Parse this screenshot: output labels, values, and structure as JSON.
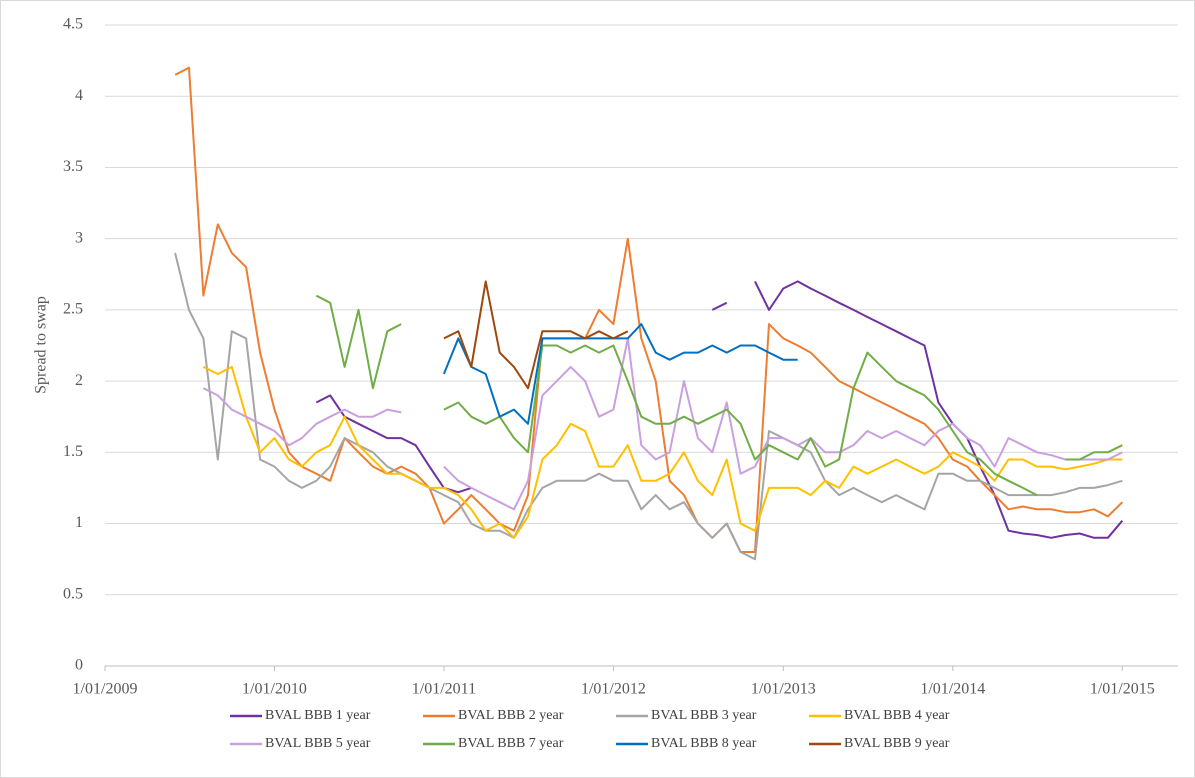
{
  "chart_data": {
    "type": "line",
    "y_label": "Spread to swap",
    "x": [
      "2009-06-01",
      "2009-07-01",
      "2009-08-01",
      "2009-09-01",
      "2009-10-01",
      "2009-11-01",
      "2009-12-01",
      "2010-01-01",
      "2010-02-01",
      "2010-03-01",
      "2010-04-01",
      "2010-05-01",
      "2010-06-01",
      "2010-07-01",
      "2010-08-01",
      "2010-09-01",
      "2010-10-01",
      "2010-11-01",
      "2010-12-01",
      "2011-01-01",
      "2011-02-01",
      "2011-03-01",
      "2011-04-01",
      "2011-05-01",
      "2011-06-01",
      "2011-07-01",
      "2011-08-01",
      "2011-09-01",
      "2011-10-01",
      "2011-11-01",
      "2011-12-01",
      "2012-01-01",
      "2012-02-01",
      "2012-03-01",
      "2012-04-01",
      "2012-05-01",
      "2012-06-01",
      "2012-07-01",
      "2012-08-01",
      "2012-09-01",
      "2012-10-01",
      "2012-11-01",
      "2012-12-01",
      "2013-01-01",
      "2013-02-01",
      "2013-03-01",
      "2013-04-01",
      "2013-05-01",
      "2013-06-01",
      "2013-07-01",
      "2013-08-01",
      "2013-09-01",
      "2013-10-01",
      "2013-11-01",
      "2013-12-01",
      "2014-01-01",
      "2014-02-01",
      "2014-03-01",
      "2014-04-01",
      "2014-05-01",
      "2014-06-01",
      "2014-07-01",
      "2014-08-01",
      "2014-09-01",
      "2014-10-01",
      "2014-11-01",
      "2014-12-01",
      "2015-01-01"
    ],
    "series": [
      {
        "name": "BVAL BBB 1 year",
        "color": "#7030a0",
        "values": [
          null,
          null,
          null,
          null,
          null,
          null,
          null,
          null,
          null,
          null,
          1.85,
          1.9,
          1.75,
          1.7,
          1.65,
          1.6,
          1.6,
          1.55,
          1.4,
          1.25,
          1.22,
          1.25,
          null,
          null,
          null,
          null,
          null,
          null,
          null,
          null,
          null,
          null,
          null,
          null,
          null,
          null,
          null,
          null,
          2.5,
          2.55,
          null,
          2.7,
          2.5,
          2.65,
          2.7,
          2.65,
          2.6,
          2.55,
          2.5,
          2.45,
          2.4,
          2.35,
          2.3,
          2.25,
          1.85,
          1.7,
          1.6,
          1.4,
          1.2,
          0.95,
          0.93,
          0.92,
          0.9,
          0.92,
          0.93,
          0.9,
          0.9,
          1.02
        ]
      },
      {
        "name": "BVAL BBB 2 year",
        "color": "#ed7d31",
        "values": [
          4.15,
          4.2,
          2.6,
          3.1,
          2.9,
          2.8,
          2.2,
          1.8,
          1.5,
          1.4,
          1.35,
          1.3,
          1.6,
          1.5,
          1.4,
          1.35,
          1.4,
          1.35,
          1.25,
          1.0,
          1.1,
          1.2,
          1.1,
          1.0,
          0.95,
          1.2,
          2.3,
          2.3,
          2.3,
          2.3,
          2.5,
          2.4,
          3.0,
          2.3,
          2.0,
          1.3,
          1.2,
          1.0,
          0.9,
          1.0,
          0.8,
          0.8,
          2.4,
          2.3,
          2.25,
          2.2,
          2.1,
          2.0,
          1.95,
          1.9,
          1.85,
          1.8,
          1.75,
          1.7,
          1.6,
          1.45,
          1.4,
          1.3,
          1.2,
          1.1,
          1.12,
          1.1,
          1.1,
          1.08,
          1.08,
          1.1,
          1.05,
          1.15
        ]
      },
      {
        "name": "BVAL BBB 3 year",
        "color": "#a5a5a5",
        "values": [
          2.9,
          2.5,
          2.3,
          1.45,
          2.35,
          2.3,
          1.45,
          1.4,
          1.3,
          1.25,
          1.3,
          1.4,
          1.6,
          1.55,
          1.5,
          1.4,
          1.35,
          1.3,
          1.25,
          1.2,
          1.15,
          1.0,
          0.95,
          0.95,
          0.9,
          1.1,
          1.25,
          1.3,
          1.3,
          1.3,
          1.35,
          1.3,
          1.3,
          1.1,
          1.2,
          1.1,
          1.15,
          1.0,
          0.9,
          1.0,
          0.8,
          0.75,
          1.65,
          1.6,
          1.55,
          1.5,
          1.3,
          1.2,
          1.25,
          1.2,
          1.15,
          1.2,
          1.15,
          1.1,
          1.35,
          1.35,
          1.3,
          1.3,
          1.25,
          1.2,
          1.2,
          1.2,
          1.2,
          1.22,
          1.25,
          1.25,
          1.27,
          1.3
        ]
      },
      {
        "name": "BVAL BBB 4 year",
        "color": "#ffc000",
        "values": [
          null,
          null,
          2.1,
          2.05,
          2.1,
          1.75,
          1.5,
          1.6,
          1.45,
          1.4,
          1.5,
          1.55,
          1.75,
          1.55,
          1.45,
          1.35,
          1.35,
          1.3,
          1.25,
          1.25,
          1.2,
          1.1,
          0.95,
          1.0,
          0.9,
          1.05,
          1.45,
          1.55,
          1.7,
          1.65,
          1.4,
          1.4,
          1.55,
          1.3,
          1.3,
          1.35,
          1.5,
          1.3,
          1.2,
          1.45,
          1.0,
          0.95,
          1.25,
          1.25,
          1.25,
          1.2,
          1.3,
          1.25,
          1.4,
          1.35,
          1.4,
          1.45,
          1.4,
          1.35,
          1.4,
          1.5,
          1.45,
          1.4,
          1.3,
          1.45,
          1.45,
          1.4,
          1.4,
          1.38,
          1.4,
          1.42,
          1.45,
          1.45
        ]
      },
      {
        "name": "BVAL BBB 5 year",
        "color": "#c99fe0",
        "values": [
          null,
          null,
          1.95,
          1.9,
          1.8,
          1.75,
          1.7,
          1.65,
          1.55,
          1.6,
          1.7,
          1.75,
          1.8,
          1.75,
          1.75,
          1.8,
          1.78,
          null,
          null,
          1.4,
          1.3,
          1.25,
          1.2,
          1.15,
          1.1,
          1.3,
          1.9,
          2.0,
          2.1,
          2.0,
          1.75,
          1.8,
          2.3,
          1.55,
          1.45,
          1.5,
          2.0,
          1.6,
          1.5,
          1.85,
          1.35,
          1.4,
          1.6,
          1.6,
          1.55,
          1.6,
          1.5,
          1.5,
          1.55,
          1.65,
          1.6,
          1.65,
          1.6,
          1.55,
          1.65,
          1.7,
          1.6,
          1.55,
          1.4,
          1.6,
          1.55,
          1.5,
          1.48,
          1.45,
          1.45,
          1.45,
          1.45,
          1.5
        ]
      },
      {
        "name": "BVAL BBB 7 year",
        "color": "#70ad47",
        "values": [
          null,
          null,
          null,
          null,
          null,
          null,
          null,
          null,
          null,
          null,
          2.6,
          2.55,
          2.1,
          2.5,
          1.95,
          2.35,
          2.4,
          null,
          null,
          1.8,
          1.85,
          1.75,
          1.7,
          1.75,
          1.6,
          1.5,
          2.25,
          2.25,
          2.2,
          2.25,
          2.2,
          2.25,
          2.0,
          1.75,
          1.7,
          1.7,
          1.75,
          1.7,
          1.75,
          1.8,
          1.7,
          1.45,
          1.55,
          1.5,
          1.45,
          1.6,
          1.4,
          1.45,
          1.95,
          2.2,
          2.1,
          2.0,
          1.95,
          1.9,
          1.8,
          1.65,
          1.5,
          1.45,
          1.35,
          1.3,
          1.25,
          1.2,
          null,
          1.45,
          1.45,
          1.5,
          1.5,
          1.55
        ]
      },
      {
        "name": "BVAL BBB 8 year",
        "color": "#0070c0",
        "values": [
          null,
          null,
          null,
          null,
          null,
          null,
          null,
          null,
          null,
          null,
          null,
          null,
          null,
          null,
          null,
          null,
          null,
          null,
          null,
          2.05,
          2.3,
          2.1,
          2.05,
          1.75,
          1.8,
          1.7,
          2.3,
          2.3,
          2.3,
          2.3,
          2.3,
          2.3,
          2.3,
          2.4,
          2.2,
          2.15,
          2.2,
          2.2,
          2.25,
          2.2,
          2.25,
          2.25,
          2.2,
          2.15,
          2.15,
          null,
          null,
          null,
          null,
          null,
          null,
          null,
          null,
          null,
          null,
          null,
          null,
          null,
          null,
          null,
          null,
          null,
          null,
          null,
          null,
          null,
          null,
          null
        ]
      },
      {
        "name": "BVAL BBB 9 year",
        "color": "#9e480e",
        "values": [
          null,
          null,
          null,
          null,
          null,
          null,
          null,
          null,
          null,
          null,
          null,
          null,
          null,
          null,
          null,
          null,
          null,
          null,
          null,
          2.3,
          2.35,
          2.1,
          2.7,
          2.2,
          2.1,
          1.95,
          2.35,
          2.35,
          2.35,
          2.3,
          2.35,
          2.3,
          2.35,
          null,
          null,
          null,
          null,
          null,
          null,
          null,
          null,
          null,
          null,
          null,
          null,
          null,
          null,
          null,
          null,
          null,
          null,
          null,
          null,
          null,
          null,
          null,
          null,
          null,
          null,
          null,
          null,
          null,
          null,
          null,
          null,
          null,
          null,
          null
        ]
      }
    ],
    "xlim": [
      "2009-01-01",
      "2015-05-01"
    ],
    "xticks": [
      {
        "value": "2009-01-01",
        "label": "1/01/2009"
      },
      {
        "value": "2010-01-01",
        "label": "1/01/2010"
      },
      {
        "value": "2011-01-01",
        "label": "1/01/2011"
      },
      {
        "value": "2012-01-01",
        "label": "1/01/2012"
      },
      {
        "value": "2013-01-01",
        "label": "1/01/2013"
      },
      {
        "value": "2014-01-01",
        "label": "1/01/2014"
      },
      {
        "value": "2015-01-01",
        "label": "1/01/2015"
      }
    ],
    "ylim": [
      0,
      4.5
    ],
    "yticks": [
      0,
      0.5,
      1,
      1.5,
      2,
      2.5,
      3,
      3.5,
      4,
      4.5
    ],
    "grid": true,
    "legend": "bottom"
  }
}
